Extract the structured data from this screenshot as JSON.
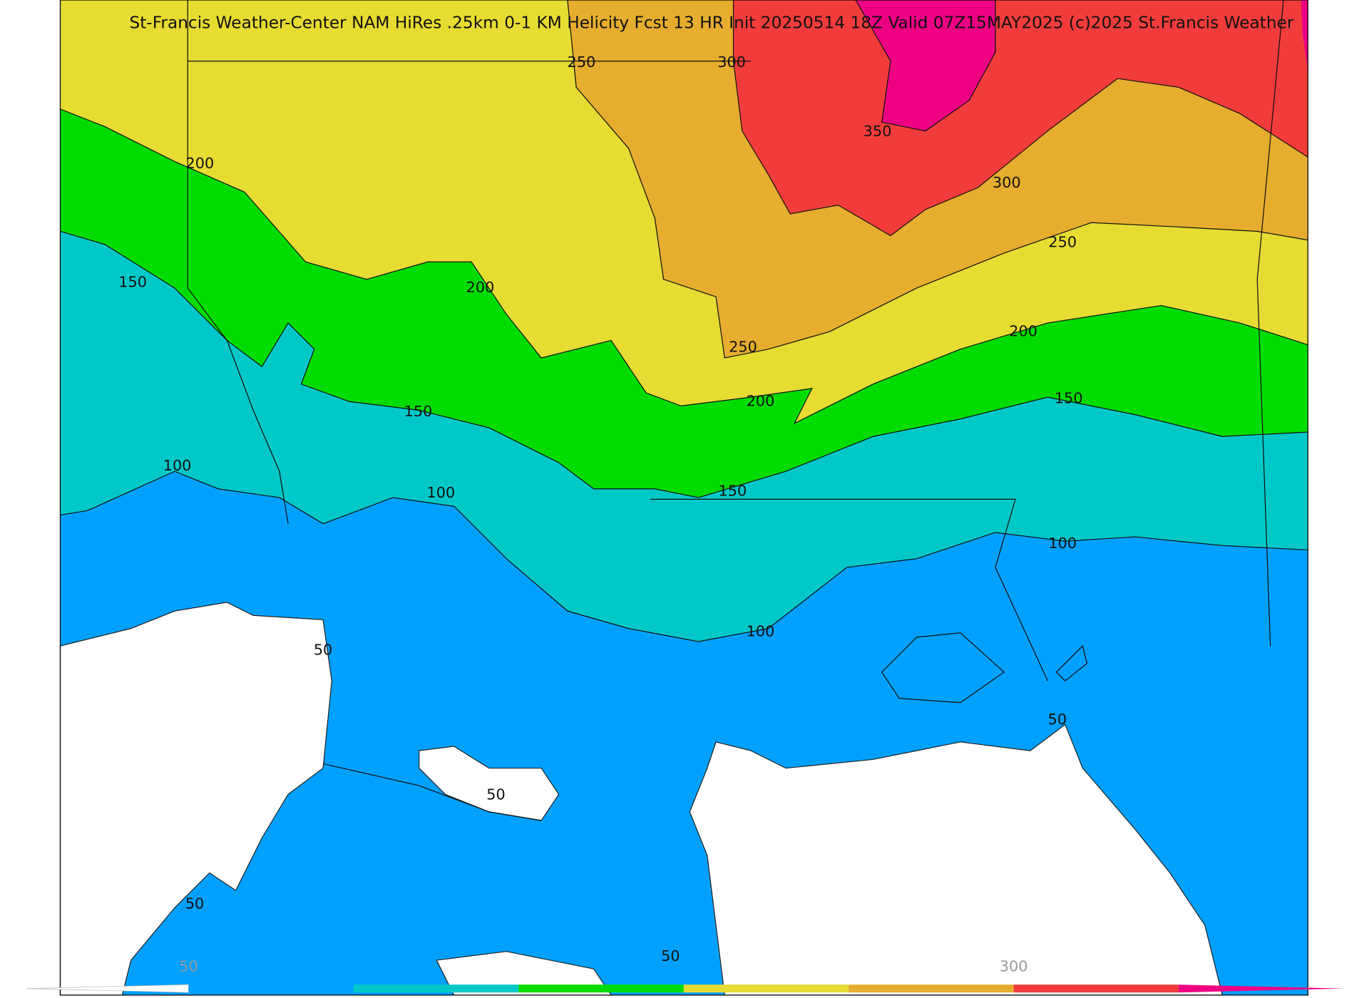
{
  "header": {
    "title": "St-Francis Weather-Center NAM HiRes .25km 0-1 KM Helicity Fcst 13 HR Init 20250514 18Z  Valid 07Z15MAY2025    (c)2025 St.Francis Weather"
  },
  "contour_labels": [
    250,
    300,
    350,
    200,
    300,
    250,
    150,
    200,
    250,
    200,
    150,
    200,
    150,
    100,
    100,
    150,
    100,
    100,
    50,
    50,
    50,
    50,
    50
  ],
  "colorbar": {
    "colors": [
      "#00a0ff",
      "#00c8c8",
      "#00dc00",
      "#e6dc32",
      "#e6ad2e",
      "#f23c3c",
      "#ef0083"
    ],
    "labels": [
      50,
      300
    ]
  }
}
